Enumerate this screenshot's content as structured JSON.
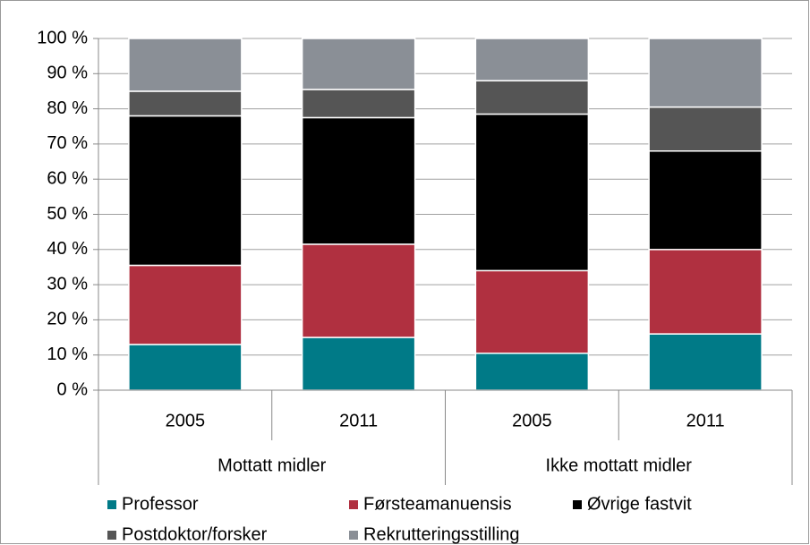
{
  "chart_data": {
    "type": "stacked_bar",
    "categories": [
      "2005",
      "2011",
      "2005",
      "2011"
    ],
    "groups": [
      "Mottatt midler",
      "Ikke mottatt midler"
    ],
    "series": [
      {
        "name": "Professor",
        "color": "#007a87",
        "values": [
          13,
          15,
          10.5,
          16
        ]
      },
      {
        "name": "Førsteamanuensis",
        "color": "#b03040",
        "values": [
          22.5,
          26.5,
          23.5,
          24
        ]
      },
      {
        "name": "Øvrige fastvit",
        "color": "#000000",
        "values": [
          42.5,
          36,
          44.5,
          28
        ]
      },
      {
        "name": "Postdoktor/forsker",
        "color": "#555555",
        "values": [
          7,
          8,
          9.5,
          12.5
        ]
      },
      {
        "name": "Rekrutteringsstilling",
        "color": "#8a8f96",
        "values": [
          15,
          14.5,
          12,
          19.5
        ]
      }
    ],
    "ylim": [
      0,
      100
    ],
    "yticks": [
      {
        "value": 0,
        "label": "0 %"
      },
      {
        "value": 10,
        "label": "10 %"
      },
      {
        "value": 20,
        "label": "20 %"
      },
      {
        "value": 30,
        "label": "30 %"
      },
      {
        "value": 40,
        "label": "40 %"
      },
      {
        "value": 50,
        "label": "50 %"
      },
      {
        "value": 60,
        "label": "60 %"
      },
      {
        "value": 70,
        "label": "70 %"
      },
      {
        "value": 80,
        "label": "80 %"
      },
      {
        "value": 90,
        "label": "90 %"
      },
      {
        "value": 100,
        "label": "100 %"
      }
    ],
    "grid": true,
    "legend": "bottom"
  }
}
